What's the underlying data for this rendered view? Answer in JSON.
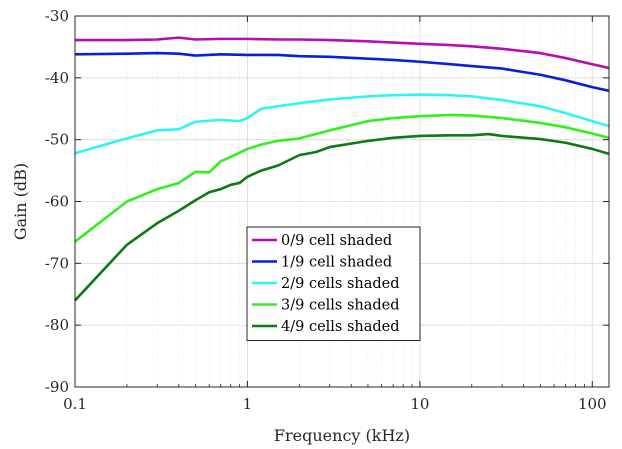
{
  "chart_data": {
    "type": "line",
    "title": "",
    "xlabel": "Frequency (kHz)",
    "ylabel": "Gain (dB)",
    "xscale": "log",
    "xlim": [
      0.1,
      125
    ],
    "ylim": [
      -90,
      -30
    ],
    "xticks": [
      0.1,
      1,
      10,
      100
    ],
    "xtick_labels": [
      "0.1",
      "1",
      "10",
      "100"
    ],
    "yticks": [
      -90,
      -80,
      -70,
      -60,
      -50,
      -40,
      -30
    ],
    "ytick_labels": [
      "-90",
      "-80",
      "-70",
      "-60",
      "-50",
      "-40",
      "-30"
    ],
    "grid": true,
    "legend_position": "center",
    "series": [
      {
        "name": "0/9 cell shaded",
        "color": "#b30fb3",
        "x": [
          0.1,
          0.2,
          0.3,
          0.4,
          0.5,
          0.7,
          1,
          1.5,
          2,
          3,
          5,
          7,
          10,
          15,
          20,
          30,
          50,
          70,
          100,
          125
        ],
        "y": [
          -33.9,
          -33.9,
          -33.8,
          -33.5,
          -33.8,
          -33.7,
          -33.7,
          -33.8,
          -33.8,
          -33.9,
          -34.1,
          -34.3,
          -34.5,
          -34.7,
          -34.9,
          -35.3,
          -36.0,
          -36.8,
          -37.8,
          -38.4
        ]
      },
      {
        "name": "1/9 cell shaded",
        "color": "#0a1fd9",
        "x": [
          0.1,
          0.2,
          0.3,
          0.4,
          0.5,
          0.7,
          1,
          1.5,
          2,
          3,
          5,
          7,
          10,
          15,
          20,
          30,
          50,
          70,
          100,
          125
        ],
        "y": [
          -36.2,
          -36.1,
          -36.0,
          -36.1,
          -36.4,
          -36.2,
          -36.3,
          -36.3,
          -36.5,
          -36.6,
          -36.9,
          -37.1,
          -37.4,
          -37.8,
          -38.1,
          -38.5,
          -39.5,
          -40.4,
          -41.5,
          -42.1
        ]
      },
      {
        "name": "2/9 cells shaded",
        "color": "#2ff4f4",
        "x": [
          0.1,
          0.2,
          0.3,
          0.4,
          0.5,
          0.7,
          0.9,
          1,
          1.2,
          1.5,
          2,
          3,
          5,
          7,
          10,
          15,
          20,
          30,
          50,
          70,
          100,
          125
        ],
        "y": [
          -52.2,
          -49.8,
          -48.5,
          -48.3,
          -47.1,
          -46.8,
          -47.0,
          -46.5,
          -45.0,
          -44.6,
          -44.1,
          -43.5,
          -43.0,
          -42.8,
          -42.7,
          -42.8,
          -43.0,
          -43.6,
          -44.6,
          -45.7,
          -47.0,
          -47.8
        ]
      },
      {
        "name": "3/9 cells shaded",
        "color": "#33ee22",
        "x": [
          0.1,
          0.2,
          0.3,
          0.4,
          0.5,
          0.6,
          0.7,
          0.8,
          1,
          1.2,
          1.5,
          2,
          3,
          5,
          7,
          10,
          15,
          20,
          30,
          50,
          70,
          100,
          125
        ],
        "y": [
          -66.5,
          -60.0,
          -58.0,
          -57.0,
          -55.2,
          -55.3,
          -53.5,
          -52.8,
          -51.5,
          -50.8,
          -50.2,
          -49.8,
          -48.5,
          -47.0,
          -46.5,
          -46.2,
          -46.0,
          -46.1,
          -46.5,
          -47.3,
          -48.0,
          -49.0,
          -49.7
        ]
      },
      {
        "name": "4/9 cells shaded",
        "color": "#0e7a12",
        "x": [
          0.1,
          0.2,
          0.3,
          0.4,
          0.5,
          0.6,
          0.7,
          0.8,
          0.9,
          1,
          1.2,
          1.5,
          2,
          2.5,
          3,
          5,
          7,
          10,
          15,
          20,
          25,
          30,
          50,
          70,
          100,
          125
        ],
        "y": [
          -76.0,
          -67.0,
          -63.5,
          -61.5,
          -59.8,
          -58.5,
          -58.0,
          -57.3,
          -57.0,
          -56.0,
          -55.0,
          -54.2,
          -52.5,
          -52.0,
          -51.2,
          -50.2,
          -49.7,
          -49.4,
          -49.3,
          -49.3,
          -49.1,
          -49.4,
          -49.9,
          -50.5,
          -51.5,
          -52.3
        ]
      }
    ]
  }
}
